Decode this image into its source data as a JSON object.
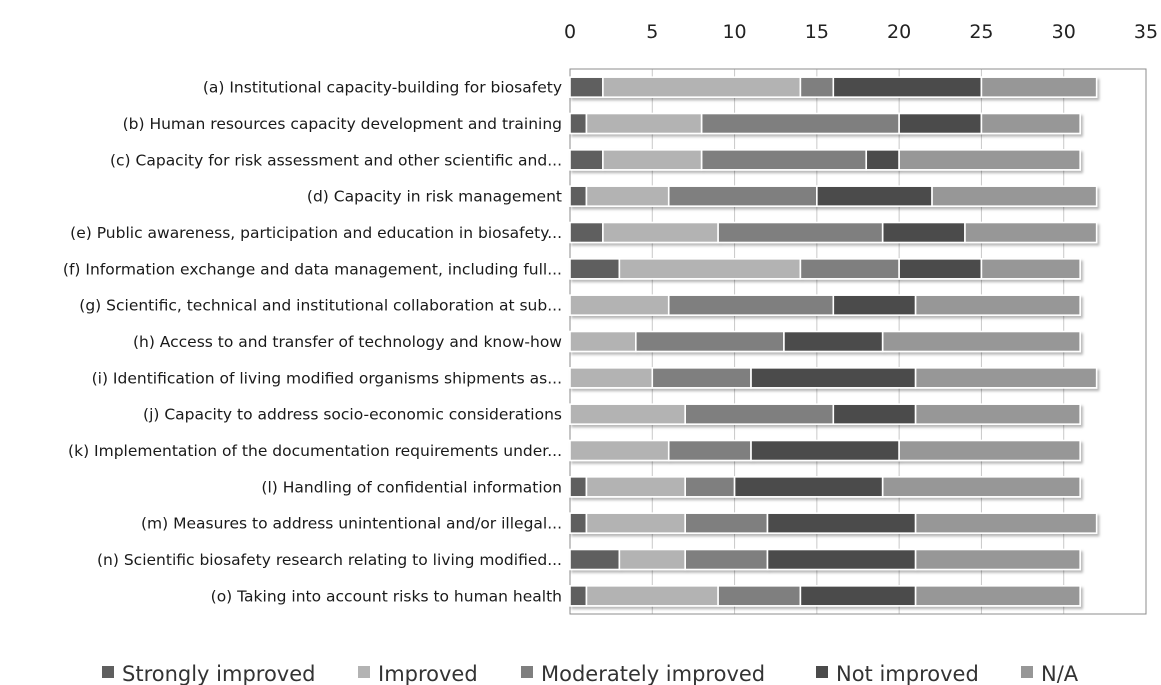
{
  "chart_data": {
    "type": "bar",
    "orientation": "horizontal",
    "stacked": true,
    "title": "",
    "xlabel": "",
    "ylabel": "",
    "xlim": [
      0,
      35
    ],
    "x_ticks": [
      0,
      5,
      10,
      15,
      20,
      25,
      30,
      35
    ],
    "x_axis_position": "top",
    "grid": true,
    "legend_position": "bottom",
    "categories": [
      "(a) Institutional capacity-building for biosafety",
      "(b) Human resources capacity development and training",
      "(c) Capacity for risk assessment and other scientific and...",
      "(d) Capacity in risk management",
      "(e) Public awareness, participation and education in biosafety...",
      "(f) Information exchange and data management, including full...",
      "(g) Scientific, technical and institutional collaboration at sub...",
      "(h) Access to and transfer of technology and know-how",
      "(i) Identification of living modified organisms shipments as...",
      "(j) Capacity to address socio-economic considerations",
      "(k) Implementation of the documentation requirements under...",
      "(l) Handling of confidential information",
      "(m) Measures to address unintentional and/or illegal...",
      "(n) Scientific biosafety research relating to living modified...",
      "(o) Taking into account risks to human health"
    ],
    "series": [
      {
        "name": "Strongly improved",
        "color": "#5f5f5f",
        "values": [
          2,
          1,
          2,
          1,
          2,
          3,
          0,
          0,
          0,
          0,
          0,
          1,
          1,
          3,
          1
        ]
      },
      {
        "name": "Improved",
        "color": "#b3b3b3",
        "values": [
          12,
          7,
          6,
          5,
          7,
          11,
          6,
          4,
          5,
          7,
          6,
          6,
          6,
          4,
          8
        ]
      },
      {
        "name": "Moderately improved",
        "color": "#7f7f7f",
        "values": [
          2,
          12,
          10,
          9,
          10,
          6,
          10,
          9,
          6,
          9,
          5,
          3,
          5,
          5,
          5
        ]
      },
      {
        "name": "Not improved",
        "color": "#4b4b4b",
        "values": [
          9,
          5,
          2,
          7,
          5,
          5,
          5,
          6,
          10,
          5,
          9,
          9,
          9,
          9,
          7
        ]
      },
      {
        "name": "N/A",
        "color": "#979797",
        "values": [
          7,
          6,
          11,
          10,
          8,
          6,
          10,
          12,
          11,
          10,
          11,
          12,
          11,
          10,
          10
        ]
      }
    ]
  }
}
